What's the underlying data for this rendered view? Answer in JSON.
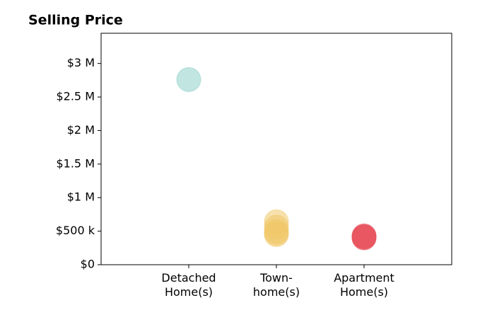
{
  "chart_data": {
    "type": "strip",
    "title": "Selling Price",
    "categories": [
      "Detached\nHome(s)",
      "Town-\nhome(s)",
      "Apartment\nHome(s)"
    ],
    "colors": [
      "#8ecfc9",
      "#f0c96a",
      "#e8505b"
    ],
    "alpha": 0.55,
    "values": [
      [
        2760000
      ],
      [
        640000,
        560000,
        500000,
        470000,
        450000
      ],
      [
        430000,
        420000,
        410000,
        400000
      ]
    ],
    "ylim": [
      0,
      3450000
    ],
    "yticks": [
      {
        "value": 0,
        "label": "$0"
      },
      {
        "value": 500000,
        "label": "$500 k"
      },
      {
        "value": 1000000,
        "label": "$1 M"
      },
      {
        "value": 1500000,
        "label": "$1.5 M"
      },
      {
        "value": 2000000,
        "label": "$2 M"
      },
      {
        "value": 2500000,
        "label": "$2.5 M"
      },
      {
        "value": 3000000,
        "label": "$3 M"
      }
    ],
    "grid": false
  }
}
